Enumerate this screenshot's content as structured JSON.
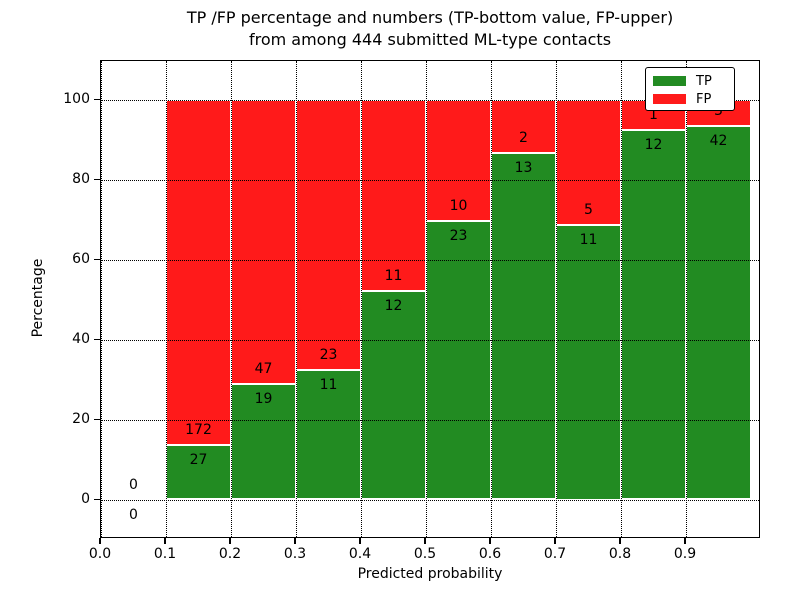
{
  "title": {
    "line1": "TP /FP percentage and numbers (TP-bottom value, FP-upper)",
    "line2": "from among 444 submitted ML-type contacts"
  },
  "chart_data": {
    "type": "bar",
    "variant": "stacked-percentage-histogram",
    "title": "TP /FP percentage and numbers (TP-bottom value, FP-upper)\nfrom among 444 submitted ML-type contacts",
    "xlabel": "Predicted probability",
    "ylabel": "Percentage",
    "total_contacts": 444,
    "xticks": [
      "0.0",
      "0.1",
      "0.2",
      "0.3",
      "0.4",
      "0.5",
      "0.6",
      "0.7",
      "0.8",
      "0.9"
    ],
    "yticks": [
      "0",
      "20",
      "40",
      "60",
      "80",
      "100"
    ],
    "xlim": [
      0.0,
      1.015
    ],
    "ylim": [
      -10,
      110
    ],
    "grid": {
      "style": "dotted",
      "color": "#000000",
      "drawn_over_bars": true
    },
    "colors": {
      "tp": "#228B22",
      "fp": "#FF1A1A",
      "bar_edge": "#ffffff"
    },
    "legend": {
      "position": "upper-right",
      "entries": [
        {
          "label": "TP",
          "color": "#228B22"
        },
        {
          "label": "FP",
          "color": "#FF1A1A"
        }
      ]
    },
    "bins": [
      {
        "x_start": 0.0,
        "x_end": 0.1,
        "tp_count": 0,
        "fp_count": 0,
        "tp_pct": 0.0,
        "fp_pct": 0.0
      },
      {
        "x_start": 0.1,
        "x_end": 0.2,
        "tp_count": 27,
        "fp_count": 172,
        "tp_pct": 13.57,
        "fp_pct": 86.43
      },
      {
        "x_start": 0.2,
        "x_end": 0.3,
        "tp_count": 19,
        "fp_count": 47,
        "tp_pct": 28.79,
        "fp_pct": 71.21
      },
      {
        "x_start": 0.3,
        "x_end": 0.4,
        "tp_count": 11,
        "fp_count": 23,
        "tp_pct": 32.35,
        "fp_pct": 67.65
      },
      {
        "x_start": 0.4,
        "x_end": 0.5,
        "tp_count": 12,
        "fp_count": 11,
        "tp_pct": 52.17,
        "fp_pct": 47.83
      },
      {
        "x_start": 0.5,
        "x_end": 0.6,
        "tp_count": 23,
        "fp_count": 10,
        "tp_pct": 69.7,
        "fp_pct": 30.3
      },
      {
        "x_start": 0.6,
        "x_end": 0.7,
        "tp_count": 13,
        "fp_count": 2,
        "tp_pct": 86.67,
        "fp_pct": 13.33
      },
      {
        "x_start": 0.7,
        "x_end": 0.8,
        "tp_count": 11,
        "fp_count": 5,
        "tp_pct": 68.75,
        "fp_pct": 31.25
      },
      {
        "x_start": 0.8,
        "x_end": 0.9,
        "tp_count": 12,
        "fp_count": 1,
        "tp_pct": 92.31,
        "fp_pct": 7.69
      },
      {
        "x_start": 0.9,
        "x_end": 1.0,
        "tp_count": 42,
        "fp_count": 3,
        "tp_pct": 93.33,
        "fp_pct": 6.67
      }
    ]
  }
}
